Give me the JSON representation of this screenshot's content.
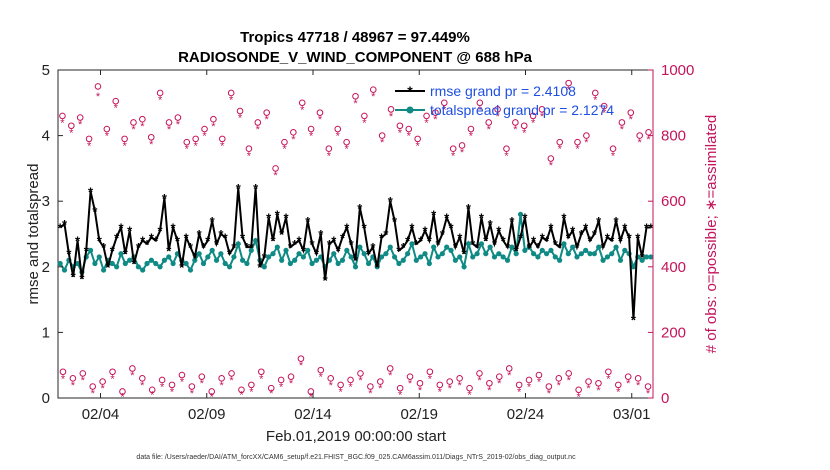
{
  "chart_data": {
    "type": "line",
    "title_line1": "Tropics 47718 / 48967 = 97.449%",
    "title_line2": "RADIOSONDE_V_WIND_COMPONENT @ 688 hPa",
    "xlabel": "Feb.01,2019 00:00:00 start",
    "ylabel_left": "rmse and totalspread",
    "ylabel_right": "# of obs: o=possible; ∗=assimilated",
    "footnote": "data file: /Users/raeder/DAI/ATM_forcXX/CAM6_setup/f.e21.FHIST_BGC.f09_025.CAM6assim.011/Diags_NTrS_2019-02/obs_diag_output.nc",
    "xlim": [
      1,
      29
    ],
    "ylim_left": [
      0,
      5
    ],
    "ylim_right": [
      0,
      1000
    ],
    "x_ticks": [
      3,
      8,
      13,
      18,
      23,
      28
    ],
    "x_tick_labels": [
      "02/04",
      "02/09",
      "02/14",
      "02/19",
      "02/24",
      "03/01"
    ],
    "y_ticks_left": [
      "0",
      "1",
      "2",
      "3",
      "4",
      "5"
    ],
    "y_ticks_right": [
      "0",
      "200",
      "400",
      "600",
      "800",
      "1000"
    ],
    "colors": {
      "rmse": "#000000",
      "spread": "#0f8a85",
      "obs": "#c4145a",
      "legend_text": "#1f4fe0"
    },
    "legend": [
      {
        "label": "rmse grand pr = 2.4108"
      },
      {
        "label": "totalspread grand pr = 2.1274"
      }
    ],
    "series": [
      {
        "name": "rmse",
        "values": [
          2.6,
          2.65,
          2.2,
          1.85,
          2.4,
          1.82,
          2.25,
          3.15,
          2.85,
          2.4,
          2.3,
          2.0,
          2.25,
          2.45,
          2.6,
          2.2,
          2.55,
          2.05,
          2.3,
          2.4,
          2.35,
          2.45,
          2.4,
          2.55,
          3.05,
          2.25,
          2.6,
          2.4,
          2.0,
          2.45,
          2.3,
          2.15,
          2.5,
          2.3,
          2.4,
          2.7,
          2.35,
          2.5,
          2.45,
          2.2,
          2.3,
          3.2,
          2.45,
          2.3,
          2.3,
          3.2,
          2.0,
          2.15,
          2.75,
          2.4,
          2.8,
          2.5,
          2.75,
          2.3,
          2.35,
          2.4,
          2.25,
          2.7,
          2.35,
          2.2,
          2.5,
          1.8,
          2.35,
          2.4,
          2.25,
          2.45,
          2.6,
          2.35,
          2.1,
          2.9,
          2.6,
          2.2,
          2.3,
          2.0,
          2.45,
          2.5,
          3.0,
          2.7,
          2.25,
          2.3,
          2.4,
          2.6,
          2.35,
          2.4,
          2.55,
          2.4,
          2.8,
          2.35,
          2.5,
          2.75,
          2.6,
          2.3,
          2.45,
          2.2,
          2.9,
          2.35,
          2.3,
          2.75,
          2.4,
          2.65,
          2.35,
          2.55,
          2.4,
          2.3,
          2.7,
          2.25,
          2.45,
          2.75,
          2.3,
          2.4,
          2.3,
          2.45,
          2.4,
          2.6,
          2.35,
          2.3,
          2.75,
          2.45,
          2.55,
          2.3,
          2.5,
          2.6,
          2.4,
          2.5,
          2.7,
          2.3,
          2.45,
          2.4,
          2.7,
          2.4,
          2.6,
          2.45,
          1.2,
          2.45,
          2.15,
          2.6,
          2.6
        ],
        "marker": "asterisk-line"
      },
      {
        "name": "totalspread",
        "values": [
          2.05,
          1.95,
          2.1,
          2.0,
          2.05,
          1.92,
          2.15,
          2.25,
          2.05,
          2.15,
          1.95,
          2.1,
          2.05,
          2.0,
          2.2,
          2.05,
          2.1,
          2.15,
          2.0,
          1.95,
          2.05,
          2.1,
          2.05,
          2.0,
          2.1,
          2.15,
          2.05,
          2.2,
          2.1,
          2.05,
          1.95,
          2.1,
          2.2,
          2.05,
          2.15,
          2.25,
          2.1,
          2.2,
          2.05,
          2.0,
          2.15,
          2.35,
          2.1,
          2.05,
          2.25,
          2.4,
          2.1,
          2.0,
          2.15,
          2.2,
          2.3,
          2.1,
          2.25,
          2.05,
          2.1,
          2.2,
          2.15,
          2.25,
          2.05,
          2.1,
          2.15,
          2.0,
          2.1,
          2.2,
          2.05,
          2.1,
          2.25,
          2.15,
          2.0,
          2.3,
          2.2,
          2.05,
          2.15,
          2.0,
          2.15,
          2.2,
          2.3,
          2.15,
          2.05,
          2.1,
          2.2,
          2.35,
          2.1,
          2.15,
          2.2,
          2.05,
          2.3,
          2.15,
          2.2,
          2.3,
          2.25,
          2.1,
          2.15,
          2.0,
          2.35,
          2.15,
          2.2,
          2.35,
          2.2,
          2.3,
          2.15,
          2.2,
          2.15,
          2.1,
          2.3,
          2.2,
          2.8,
          2.25,
          2.3,
          2.2,
          2.15,
          2.25,
          2.2,
          2.25,
          2.15,
          2.1,
          2.35,
          2.2,
          2.3,
          2.15,
          2.2,
          2.25,
          2.2,
          2.2,
          2.3,
          2.1,
          2.15,
          2.2,
          2.3,
          2.1,
          2.25,
          2.2,
          2.0,
          2.15,
          2.1,
          2.15,
          2.15
        ],
        "marker": "dot-line"
      },
      {
        "name": "obs_possible_upper",
        "values": [
          860,
          830,
          855,
          790,
          950,
          820,
          905,
          790,
          840,
          850,
          795,
          930,
          840,
          855,
          780,
          790,
          820,
          850,
          790,
          930,
          875,
          760,
          840,
          870,
          700,
          780,
          810,
          900,
          820,
          870,
          760,
          820,
          780,
          920,
          860,
          940,
          800,
          880,
          830,
          820,
          790,
          860,
          870,
          900,
          760,
          770,
          820,
          900,
          840,
          880,
          760,
          840,
          830,
          860,
          880,
          730,
          780,
          960,
          780,
          800,
          930,
          890,
          760,
          840,
          870,
          800,
          810
        ],
        "marker": "circle"
      },
      {
        "name": "obs_assimilated_upper",
        "values": [
          840,
          810,
          835,
          770,
          920,
          800,
          885,
          770,
          820,
          830,
          775,
          910,
          820,
          835,
          760,
          770,
          800,
          830,
          770,
          910,
          855,
          740,
          820,
          850,
          680,
          760,
          790,
          880,
          800,
          850,
          740,
          800,
          760,
          900,
          840,
          920,
          780,
          860,
          810,
          800,
          770,
          840,
          850,
          880,
          740,
          750,
          800,
          880,
          820,
          860,
          740,
          820,
          810,
          840,
          860,
          710,
          760,
          940,
          760,
          780,
          910,
          870,
          740,
          820,
          850,
          780,
          790
        ],
        "marker": "asterisk"
      },
      {
        "name": "obs_possible_lower",
        "values": [
          80,
          60,
          75,
          35,
          50,
          80,
          20,
          90,
          60,
          25,
          55,
          40,
          70,
          35,
          65,
          20,
          60,
          75,
          25,
          40,
          80,
          30,
          55,
          65,
          120,
          20,
          85,
          60,
          40,
          55,
          75,
          35,
          50,
          90,
          30,
          65,
          45,
          80,
          40,
          50,
          60,
          30,
          75,
          45,
          65,
          90,
          40,
          55,
          70,
          35,
          60,
          75,
          25,
          50,
          45,
          80,
          40,
          65,
          60,
          35
        ],
        "marker": "circle"
      },
      {
        "name": "obs_assimilated_lower",
        "values": [
          60,
          40,
          55,
          15,
          30,
          60,
          5,
          70,
          40,
          10,
          35,
          20,
          50,
          15,
          45,
          5,
          40,
          55,
          10,
          20,
          60,
          15,
          35,
          45,
          100,
          5,
          65,
          40,
          20,
          35,
          55,
          15,
          30,
          70,
          10,
          45,
          25,
          60,
          20,
          30,
          40,
          10,
          55,
          25,
          45,
          70,
          20,
          35,
          50,
          15,
          40,
          55,
          5,
          30,
          25,
          60,
          20,
          45,
          40,
          15
        ],
        "marker": "asterisk"
      }
    ]
  }
}
